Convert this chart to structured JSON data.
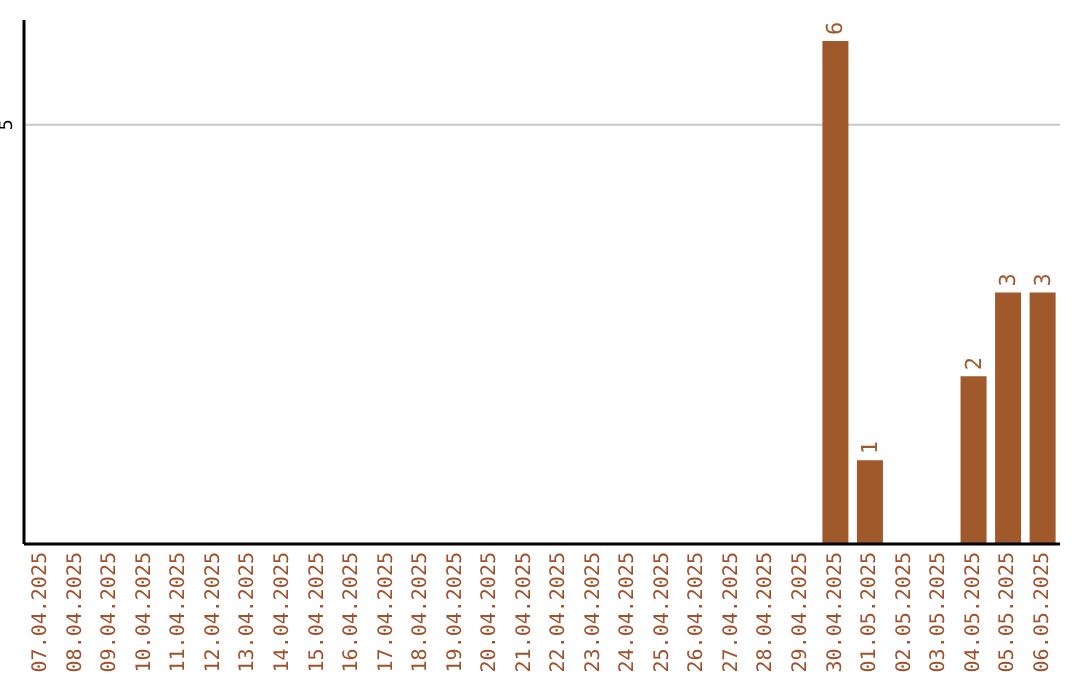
{
  "chart_data": {
    "type": "bar",
    "categories": [
      "07.04.2025",
      "08.04.2025",
      "09.04.2025",
      "10.04.2025",
      "11.04.2025",
      "12.04.2025",
      "13.04.2025",
      "14.04.2025",
      "15.04.2025",
      "16.04.2025",
      "17.04.2025",
      "18.04.2025",
      "19.04.2025",
      "20.04.2025",
      "21.04.2025",
      "22.04.2025",
      "23.04.2025",
      "24.04.2025",
      "25.04.2025",
      "26.04.2025",
      "27.04.2025",
      "28.04.2025",
      "29.04.2025",
      "30.04.2025",
      "01.05.2025",
      "02.05.2025",
      "03.05.2025",
      "04.05.2025",
      "05.05.2025",
      "06.05.2025"
    ],
    "values": [
      null,
      null,
      null,
      null,
      null,
      null,
      null,
      null,
      null,
      null,
      null,
      null,
      null,
      null,
      null,
      null,
      null,
      null,
      null,
      null,
      null,
      null,
      null,
      6,
      1,
      null,
      null,
      2,
      3,
      3
    ],
    "color": "#a0592b",
    "ylim": [
      0,
      6.25
    ],
    "yticks": [
      5
    ],
    "grid": "y",
    "data_labels": true
  }
}
